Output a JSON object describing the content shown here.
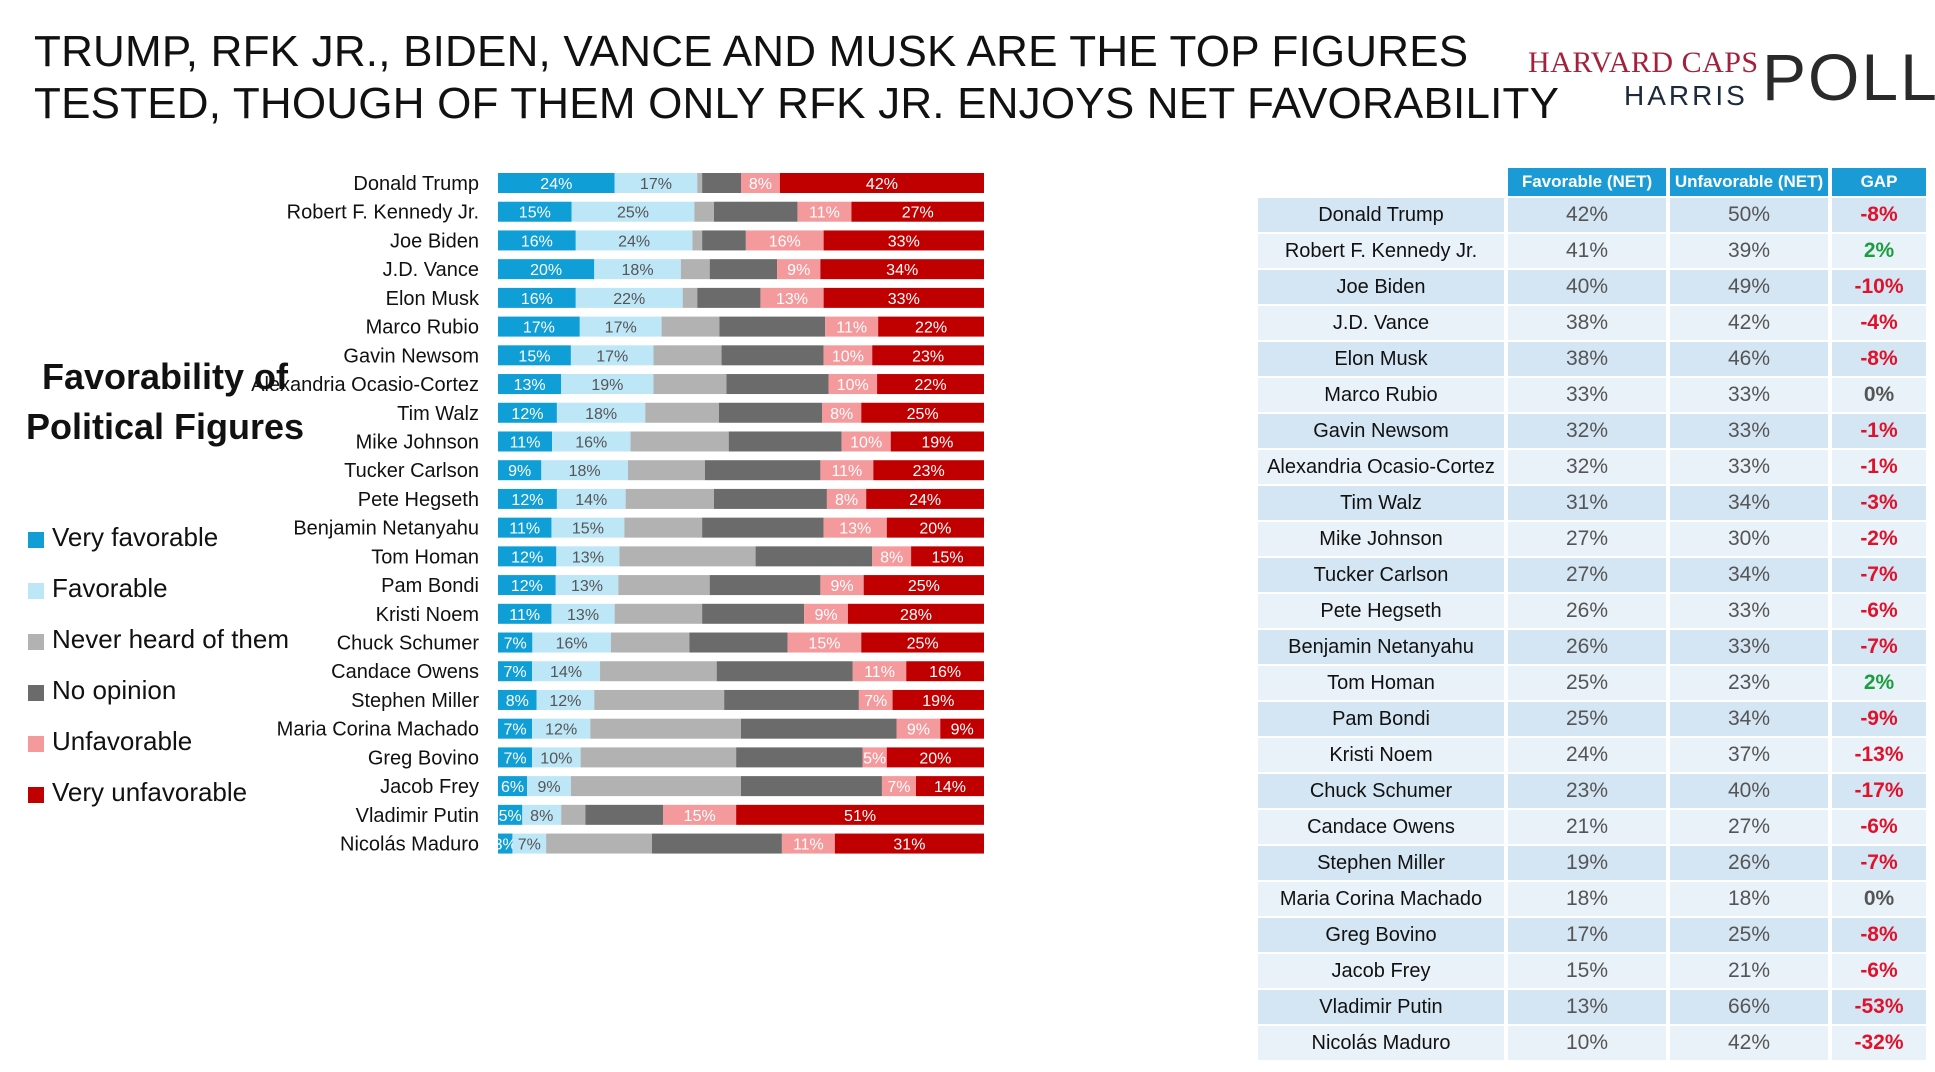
{
  "title": {
    "line1": "TRUMP, RFK JR., BIDEN, VANCE AND MUSK ARE THE TOP FIGURES",
    "line2": "TESTED, THOUGH OF THEM ONLY RFK JR. ENJOYS NET FAVORABILITY"
  },
  "logo": {
    "line1": "HARVARD CAPS",
    "line2": "HARRIS",
    "poll": "POLL"
  },
  "section_title": {
    "line1": "Favorability of",
    "line2": "Political Figures"
  },
  "colors": {
    "very_favorable": "#0f9ed5",
    "favorable": "#bde6f7",
    "never_heard": "#b2b2b2",
    "no_opinion": "#6b6b6b",
    "unfavorable": "#f4999c",
    "very_unfavorable": "#c00000",
    "gap_positive": "#1a9e3f",
    "gap_negative": "#e0112b",
    "gap_zero": "#555555"
  },
  "legend": [
    {
      "key": "very_favorable",
      "label": "Very favorable"
    },
    {
      "key": "favorable",
      "label": "Favorable"
    },
    {
      "key": "never_heard",
      "label": "Never heard of them"
    },
    {
      "key": "no_opinion",
      "label": "No opinion"
    },
    {
      "key": "unfavorable",
      "label": "Unfavorable"
    },
    {
      "key": "very_unfavorable",
      "label": "Very unfavorable"
    }
  ],
  "table": {
    "headers": [
      "Favorable (NET)",
      "Unfavorable (NET)",
      "GAP"
    ],
    "rows": [
      {
        "name": "Donald Trump",
        "favorable": "42%",
        "unfavorable": "50%",
        "gap": "-8%"
      },
      {
        "name": "Robert F. Kennedy Jr.",
        "favorable": "41%",
        "unfavorable": "39%",
        "gap": "2%"
      },
      {
        "name": "Joe Biden",
        "favorable": "40%",
        "unfavorable": "49%",
        "gap": "-10%"
      },
      {
        "name": "J.D. Vance",
        "favorable": "38%",
        "unfavorable": "42%",
        "gap": "-4%"
      },
      {
        "name": "Elon Musk",
        "favorable": "38%",
        "unfavorable": "46%",
        "gap": "-8%"
      },
      {
        "name": "Marco Rubio",
        "favorable": "33%",
        "unfavorable": "33%",
        "gap": "0%"
      },
      {
        "name": "Gavin Newsom",
        "favorable": "32%",
        "unfavorable": "33%",
        "gap": "-1%"
      },
      {
        "name": "Alexandria Ocasio-Cortez",
        "favorable": "32%",
        "unfavorable": "33%",
        "gap": "-1%"
      },
      {
        "name": "Tim Walz",
        "favorable": "31%",
        "unfavorable": "34%",
        "gap": "-3%"
      },
      {
        "name": "Mike Johnson",
        "favorable": "27%",
        "unfavorable": "30%",
        "gap": "-2%"
      },
      {
        "name": "Tucker Carlson",
        "favorable": "27%",
        "unfavorable": "34%",
        "gap": "-7%"
      },
      {
        "name": "Pete Hegseth",
        "favorable": "26%",
        "unfavorable": "33%",
        "gap": "-6%"
      },
      {
        "name": "Benjamin Netanyahu",
        "favorable": "26%",
        "unfavorable": "33%",
        "gap": "-7%"
      },
      {
        "name": "Tom Homan",
        "favorable": "25%",
        "unfavorable": "23%",
        "gap": "2%"
      },
      {
        "name": "Pam Bondi",
        "favorable": "25%",
        "unfavorable": "34%",
        "gap": "-9%"
      },
      {
        "name": "Kristi Noem",
        "favorable": "24%",
        "unfavorable": "37%",
        "gap": "-13%"
      },
      {
        "name": "Chuck Schumer",
        "favorable": "23%",
        "unfavorable": "40%",
        "gap": "-17%"
      },
      {
        "name": "Candace Owens",
        "favorable": "21%",
        "unfavorable": "27%",
        "gap": "-6%"
      },
      {
        "name": "Stephen Miller",
        "favorable": "19%",
        "unfavorable": "26%",
        "gap": "-7%"
      },
      {
        "name": "Maria Corina Machado",
        "favorable": "18%",
        "unfavorable": "18%",
        "gap": "0%"
      },
      {
        "name": "Greg Bovino",
        "favorable": "17%",
        "unfavorable": "25%",
        "gap": "-8%"
      },
      {
        "name": "Jacob Frey",
        "favorable": "15%",
        "unfavorable": "21%",
        "gap": "-6%"
      },
      {
        "name": "Vladimir Putin",
        "favorable": "13%",
        "unfavorable": "66%",
        "gap": "-53%"
      },
      {
        "name": "Nicolás Maduro",
        "favorable": "10%",
        "unfavorable": "42%",
        "gap": "-32%"
      }
    ]
  },
  "chart_data": {
    "type": "bar",
    "orientation": "horizontal",
    "stacked": "100%",
    "categories": [
      "Donald Trump",
      "Robert F. Kennedy Jr.",
      "Joe Biden",
      "J.D. Vance",
      "Elon Musk",
      "Marco Rubio",
      "Gavin Newsom",
      "Alexandria Ocasio-Cortez",
      "Tim Walz",
      "Mike Johnson",
      "Tucker Carlson",
      "Pete Hegseth",
      "Benjamin Netanyahu",
      "Tom Homan",
      "Pam Bondi",
      "Kristi Noem",
      "Chuck Schumer",
      "Candace Owens",
      "Stephen Miller",
      "Maria Corina Machado",
      "Greg Bovino",
      "Jacob Frey",
      "Vladimir Putin",
      "Nicolás Maduro"
    ],
    "series": [
      {
        "name": "Very favorable",
        "key": "very_favorable",
        "values": [
          24,
          15,
          16,
          20,
          16,
          17,
          15,
          13,
          12,
          11,
          9,
          12,
          11,
          12,
          12,
          11,
          7,
          7,
          8,
          7,
          7,
          6,
          5,
          3
        ],
        "labels": [
          "24%",
          "15%",
          "16%",
          "20%",
          "16%",
          "17%",
          "15%",
          "13%",
          "12%",
          "11%",
          "9%",
          "12%",
          "11%",
          "12%",
          "12%",
          "11%",
          "7%",
          "7%",
          "8%",
          "7%",
          "7%",
          "6%",
          "5%",
          "3%"
        ]
      },
      {
        "name": "Favorable",
        "key": "favorable",
        "values": [
          17,
          25,
          24,
          18,
          22,
          17,
          17,
          19,
          18,
          16,
          18,
          14,
          15,
          13,
          13,
          13,
          16,
          14,
          12,
          12,
          10,
          9,
          8,
          7
        ],
        "labels": [
          "17%",
          "25%",
          "24%",
          "18%",
          "22%",
          "17%",
          "17%",
          "19%",
          "18%",
          "16%",
          "18%",
          "14%",
          "15%",
          "13%",
          "13%",
          "13%",
          "16%",
          "14%",
          "12%",
          "12%",
          "10%",
          "9%",
          "8%",
          "7%"
        ]
      },
      {
        "name": "Never heard of them",
        "key": "never_heard",
        "values": [
          1,
          4,
          2,
          6,
          3,
          12,
          14,
          15,
          15,
          20,
          16,
          18,
          16,
          28,
          19,
          18,
          16,
          24,
          27,
          31,
          32,
          35,
          5,
          22
        ],
        "labels": [
          "",
          "",
          "",
          "",
          "",
          "",
          "",
          "",
          "",
          "",
          "",
          "",
          "",
          "",
          "",
          "",
          "",
          "",
          "",
          "",
          "",
          "",
          "",
          ""
        ]
      },
      {
        "name": "No opinion",
        "key": "no_opinion",
        "values": [
          8,
          17,
          9,
          14,
          13,
          22,
          21,
          21,
          21,
          23,
          24,
          23,
          25,
          24,
          23,
          21,
          20,
          28,
          28,
          32,
          26,
          29,
          16,
          27
        ],
        "labels": [
          "",
          "",
          "",
          "",
          "",
          "",
          "",
          "",
          "",
          "",
          "",
          "",
          "",
          "",
          "",
          "",
          "",
          "",
          "",
          "",
          "",
          "",
          "",
          ""
        ]
      },
      {
        "name": "Unfavorable",
        "key": "unfavorable",
        "values": [
          8,
          11,
          16,
          9,
          13,
          11,
          10,
          10,
          8,
          10,
          11,
          8,
          13,
          8,
          9,
          9,
          15,
          11,
          7,
          9,
          5,
          7,
          15,
          11
        ],
        "labels": [
          "8%",
          "11%",
          "16%",
          "9%",
          "13%",
          "11%",
          "10%",
          "10%",
          "8%",
          "10%",
          "11%",
          "8%",
          "13%",
          "8%",
          "9%",
          "9%",
          "15%",
          "11%",
          "7%",
          "9%",
          "5%",
          "7%",
          "15%",
          "11%"
        ]
      },
      {
        "name": "Very unfavorable",
        "key": "very_unfavorable",
        "values": [
          42,
          27,
          33,
          34,
          33,
          22,
          23,
          22,
          25,
          19,
          23,
          24,
          20,
          15,
          25,
          28,
          25,
          16,
          19,
          9,
          20,
          14,
          51,
          31
        ],
        "labels": [
          "42%",
          "27%",
          "33%",
          "34%",
          "33%",
          "22%",
          "23%",
          "22%",
          "25%",
          "19%",
          "23%",
          "24%",
          "20%",
          "15%",
          "25%",
          "28%",
          "25%",
          "16%",
          "19%",
          "9%",
          "20%",
          "14%",
          "51%",
          "31%"
        ]
      }
    ],
    "xlim": [
      0,
      100
    ]
  }
}
